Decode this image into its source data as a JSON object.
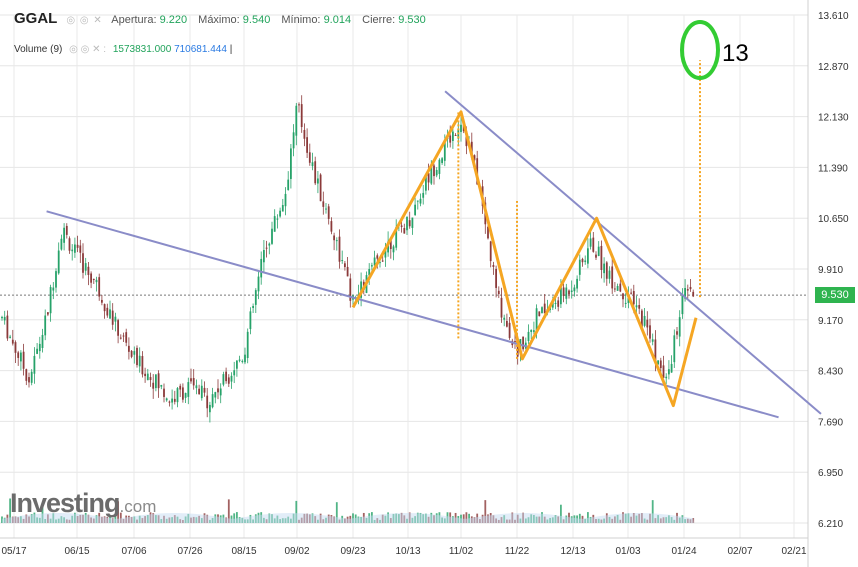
{
  "header": {
    "ticker": "GGAL",
    "controls": "◎ ◎ ✕",
    "open_label": "Apertura:",
    "open_value": "9.220",
    "high_label": "Máximo:",
    "high_value": "9.540",
    "low_label": "Mínimo:",
    "low_value": "9.014",
    "close_label": "Cierre:",
    "close_value": "9.530"
  },
  "volume_row": {
    "label": "Volume (9)",
    "controls": "◎ ◎ ✕ :",
    "value_1": "1573831.000",
    "value_2": "710681.444",
    "sep": "|"
  },
  "logo": {
    "main": "Investing",
    "suffix": ".com"
  },
  "price_tag": "9.530",
  "annotation": "13",
  "colors": {
    "up": "#26a269",
    "down": "#8b3a3a",
    "trendline": "#8a8cc8",
    "pattern": "#f5a623",
    "projection": "#f5a623",
    "circle": "#33cc33",
    "price_tag": "#2fb44f",
    "volume_area": "#c6dcf2"
  },
  "chart_data": {
    "type": "candlestick",
    "title": "GGAL",
    "y_ticks": [
      "13.610",
      "12.870",
      "12.130",
      "11.390",
      "10.650",
      "9.910",
      "9.170",
      "8.430",
      "7.690",
      "6.950",
      "6.210"
    ],
    "x_ticks": [
      "05/17",
      "06/15",
      "07/06",
      "07/26",
      "08/15",
      "09/02",
      "09/23",
      "10/13",
      "11/02",
      "11/22",
      "12/13",
      "01/03",
      "01/24",
      "02/07",
      "02/21"
    ],
    "ylim": [
      6.21,
      13.61
    ],
    "current_price": 9.53,
    "price_path": [
      [
        "05/17",
        8.8
      ],
      [
        "05/24",
        8.3
      ],
      [
        "06/01",
        9.2
      ],
      [
        "06/08",
        10.5
      ],
      [
        "06/15",
        10.1
      ],
      [
        "06/22",
        9.7
      ],
      [
        "06/29",
        9.1
      ],
      [
        "07/06",
        8.6
      ],
      [
        "07/13",
        8.3
      ],
      [
        "07/19",
        8.0
      ],
      [
        "07/26",
        8.2
      ],
      [
        "08/02",
        8.0
      ],
      [
        "08/08",
        8.3
      ],
      [
        "08/15",
        8.7
      ],
      [
        "08/22",
        10.2
      ],
      [
        "08/29",
        11.0
      ],
      [
        "09/02",
        12.3
      ],
      [
        "09/09",
        11.2
      ],
      [
        "09/16",
        10.4
      ],
      [
        "09/23",
        9.4
      ],
      [
        "09/30",
        9.9
      ],
      [
        "10/06",
        10.3
      ],
      [
        "10/13",
        10.6
      ],
      [
        "10/20",
        11.2
      ],
      [
        "10/27",
        11.7
      ],
      [
        "11/02",
        12.1
      ],
      [
        "11/08",
        11.2
      ],
      [
        "11/15",
        9.5
      ],
      [
        "11/22",
        8.7
      ],
      [
        "11/29",
        9.2
      ],
      [
        "12/06",
        9.4
      ],
      [
        "12/13",
        9.7
      ],
      [
        "12/20",
        10.3
      ],
      [
        "12/27",
        9.8
      ],
      [
        "01/03",
        9.5
      ],
      [
        "01/10",
        9.1
      ],
      [
        "01/17",
        8.2
      ],
      [
        "01/24",
        9.53
      ]
    ],
    "trendlines": [
      {
        "points": [
          [
            "06/01",
            10.75
          ],
          [
            "02/17",
            7.75
          ]
        ]
      },
      {
        "points": [
          [
            "10/27",
            12.5
          ],
          [
            "02/28",
            7.8
          ]
        ]
      }
    ],
    "pattern_points": [
      [
        "09/23",
        9.35
      ],
      [
        "11/02",
        12.2
      ],
      [
        "11/24",
        8.6
      ],
      [
        "12/22",
        10.65
      ],
      [
        "01/20",
        7.92
      ],
      [
        "01/27",
        9.2
      ]
    ],
    "projections": [
      {
        "x": "11/01",
        "from": 8.9,
        "to": 12.2
      },
      {
        "x": "11/22",
        "from": 8.6,
        "to": 10.9
      },
      {
        "x": "01/28",
        "from": 9.5,
        "to": 12.95
      }
    ],
    "target_circle": {
      "x": "01/28",
      "y": 13.1
    }
  }
}
